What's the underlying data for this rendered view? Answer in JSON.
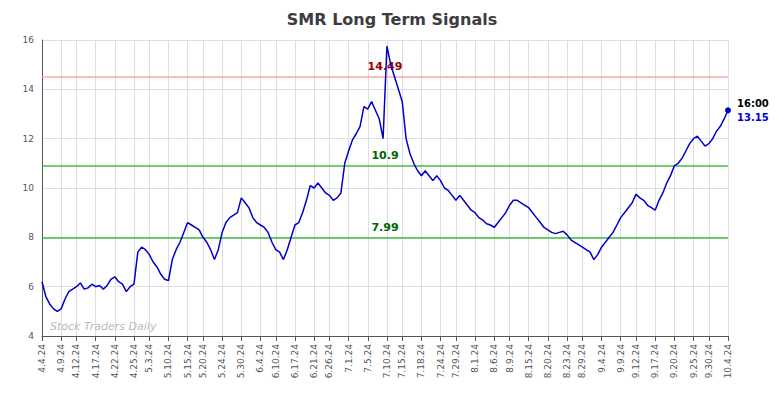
{
  "chart_data": {
    "type": "line",
    "title": "SMR Long Term Signals",
    "categories": [
      "4.4.24",
      null,
      null,
      null,
      null,
      "4.9.24",
      null,
      null,
      null,
      "4.12.24",
      null,
      null,
      null,
      null,
      "4.17.24",
      null,
      null,
      null,
      null,
      "4.22.24",
      null,
      null,
      null,
      null,
      "4.25.24",
      null,
      null,
      null,
      "5.3.24",
      null,
      null,
      null,
      null,
      "5.10.24",
      null,
      null,
      null,
      null,
      "5.15.24",
      null,
      null,
      null,
      "5.20.24",
      null,
      null,
      null,
      null,
      "5.24.24",
      null,
      null,
      null,
      null,
      "5.30.24",
      null,
      null,
      null,
      null,
      "6.4.24",
      null,
      null,
      null,
      "6.10.24",
      null,
      null,
      null,
      null,
      "6.17.24",
      null,
      null,
      null,
      null,
      "6.21.24",
      null,
      null,
      null,
      "6.26.24",
      null,
      null,
      null,
      null,
      "7.1.24",
      null,
      null,
      null,
      null,
      "7.5.24",
      null,
      null,
      null,
      null,
      "7.10.24",
      null,
      null,
      null,
      "7.15.24",
      null,
      null,
      null,
      null,
      "7.18.24",
      null,
      null,
      null,
      null,
      "7.24.24",
      null,
      null,
      null,
      "7.29.24",
      null,
      null,
      null,
      null,
      "8.1.24",
      null,
      null,
      null,
      null,
      "8.6.24",
      null,
      null,
      null,
      "8.9.24",
      null,
      null,
      null,
      null,
      "8.15.24",
      null,
      null,
      null,
      null,
      "8.20.24",
      null,
      null,
      null,
      null,
      "8.23.24",
      null,
      null,
      null,
      "8.29.24",
      null,
      null,
      null,
      null,
      "9.4.24",
      null,
      null,
      null,
      null,
      "9.9.24",
      null,
      null,
      null,
      "9.12.24",
      null,
      null,
      null,
      null,
      "9.17.24",
      null,
      null,
      null,
      null,
      "9.20.24",
      null,
      null,
      null,
      null,
      "9.25.24",
      null,
      null,
      null,
      "9.30.24",
      null,
      null,
      null,
      null,
      "10.4.24"
    ],
    "values": [
      6.2,
      5.6,
      5.3,
      5.1,
      5.0,
      5.1,
      5.5,
      5.8,
      5.9,
      6.0,
      6.15,
      5.9,
      5.95,
      6.1,
      6.0,
      6.05,
      5.9,
      6.05,
      6.3,
      6.4,
      6.2,
      6.1,
      5.8,
      6.0,
      6.1,
      7.4,
      7.6,
      7.5,
      7.3,
      7.0,
      6.8,
      6.5,
      6.3,
      6.25,
      7.1,
      7.5,
      7.8,
      8.2,
      8.6,
      8.5,
      8.4,
      8.3,
      8.0,
      7.8,
      7.5,
      7.1,
      7.5,
      8.2,
      8.6,
      8.8,
      8.9,
      9.0,
      9.6,
      9.4,
      9.2,
      8.8,
      8.6,
      8.5,
      8.4,
      8.2,
      7.8,
      7.5,
      7.4,
      7.1,
      7.5,
      8.0,
      8.5,
      8.6,
      9.0,
      9.5,
      10.1,
      10.0,
      10.2,
      10.0,
      9.8,
      9.7,
      9.5,
      9.6,
      9.8,
      11.0,
      11.5,
      11.95,
      12.2,
      12.5,
      13.3,
      13.2,
      13.5,
      13.15,
      12.8,
      12.0,
      15.75,
      15.0,
      14.5,
      14.0,
      13.5,
      12.0,
      11.4,
      11.0,
      10.7,
      10.5,
      10.7,
      10.5,
      10.3,
      10.5,
      10.3,
      10.0,
      9.9,
      9.7,
      9.5,
      9.7,
      9.5,
      9.3,
      9.1,
      9.0,
      8.8,
      8.7,
      8.55,
      8.5,
      8.4,
      8.6,
      8.8,
      9.0,
      9.3,
      9.5,
      9.5,
      9.4,
      9.3,
      9.2,
      9.0,
      8.8,
      8.6,
      8.4,
      8.3,
      8.2,
      8.15,
      8.2,
      8.25,
      8.1,
      7.9,
      7.8,
      7.7,
      7.6,
      7.5,
      7.4,
      7.1,
      7.3,
      7.6,
      7.8,
      8.0,
      8.2,
      8.5,
      8.8,
      9.0,
      9.2,
      9.4,
      9.75,
      9.6,
      9.5,
      9.3,
      9.2,
      9.1,
      9.5,
      9.8,
      10.2,
      10.5,
      10.9,
      11.0,
      11.2,
      11.5,
      11.8,
      12.0,
      12.1,
      11.9,
      11.7,
      11.8,
      12.0,
      12.3,
      12.5,
      12.8,
      13.15
    ],
    "color": "#0000cc",
    "marker": "circle",
    "ylim": [
      4,
      16
    ],
    "yticks": [
      4,
      6,
      8,
      10,
      12,
      14,
      16
    ],
    "grid": true,
    "hlines": [
      {
        "y": 14.49,
        "color": "#ffaaaa",
        "label": "14.49",
        "label_color": "#990000"
      },
      {
        "y": 10.9,
        "color": "#44bb44",
        "label": "10.9",
        "label_color": "#006600"
      },
      {
        "y": 7.99,
        "color": "#44bb44",
        "label": "7.99",
        "label_color": "#006600"
      }
    ],
    "end_labels": [
      {
        "text": "16:00",
        "color": "#000000"
      },
      {
        "text": "13.15",
        "color": "#0000cc"
      }
    ],
    "watermark": {
      "text": "Stock Traders Daily",
      "color": "#bbbbbb"
    }
  }
}
